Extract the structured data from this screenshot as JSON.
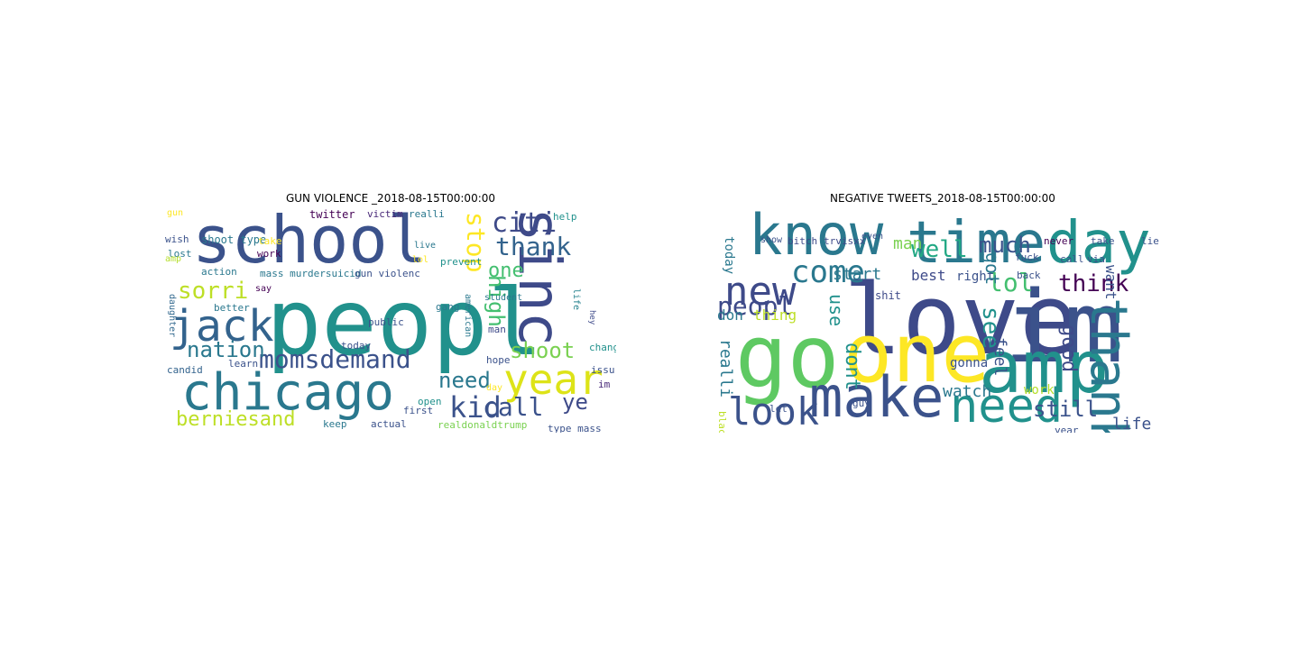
{
  "panels": [
    {
      "title": "GUN VIOLENCE _2018-08-15T00:00:00",
      "words": [
        {
          "text": "peopl",
          "color": "#21918c"
        },
        {
          "text": "school",
          "color": "#3b528b"
        },
        {
          "text": "chicago",
          "color": "#2a788e"
        },
        {
          "text": "sinc",
          "color": "#3e4a89"
        },
        {
          "text": "year",
          "color": "#dde318"
        },
        {
          "text": "jack",
          "color": "#33638d"
        },
        {
          "text": "momsdemand",
          "color": "#3b528b"
        },
        {
          "text": "berniesand",
          "color": "#bddf26"
        },
        {
          "text": "nation",
          "color": "#2a788e"
        },
        {
          "text": "sorri",
          "color": "#bddf26"
        },
        {
          "text": "citi",
          "color": "#3e4a89"
        },
        {
          "text": "thank",
          "color": "#33638d"
        },
        {
          "text": "stop",
          "color": "#fde725"
        },
        {
          "text": "one",
          "color": "#44bf70"
        },
        {
          "text": "high",
          "color": "#44bf70"
        },
        {
          "text": "shoot",
          "color": "#7ad151"
        },
        {
          "text": "kid",
          "color": "#3b528b"
        },
        {
          "text": "call",
          "color": "#3b528b"
        },
        {
          "text": "need",
          "color": "#2a788e"
        },
        {
          "text": "ye",
          "color": "#3e4a89"
        },
        {
          "text": "gun",
          "color": "#fde725"
        },
        {
          "text": "shoot type",
          "color": "#2a788e"
        },
        {
          "text": "twitter",
          "color": "#440154"
        },
        {
          "text": "victim",
          "color": "#482878"
        },
        {
          "text": "realli",
          "color": "#2a788e"
        },
        {
          "text": "help",
          "color": "#21918c"
        },
        {
          "text": "wish",
          "color": "#3b528b"
        },
        {
          "text": "lost",
          "color": "#2a788e"
        },
        {
          "text": "take",
          "color": "#fde725"
        },
        {
          "text": "work",
          "color": "#440154"
        },
        {
          "text": "live",
          "color": "#2a788e"
        },
        {
          "text": "lol",
          "color": "#fde725"
        },
        {
          "text": "prevent",
          "color": "#21918c"
        },
        {
          "text": "student",
          "color": "#2a788e"
        },
        {
          "text": "action",
          "color": "#2a788e"
        },
        {
          "text": "mass murdersuicid",
          "color": "#2a788e"
        },
        {
          "text": "gun violenc",
          "color": "#3b528b"
        },
        {
          "text": "amp",
          "color": "#b5de2b"
        },
        {
          "text": "say",
          "color": "#440154"
        },
        {
          "text": "daughter",
          "color": "#31688e"
        },
        {
          "text": "better",
          "color": "#2a788e"
        },
        {
          "text": "gang",
          "color": "#2a788e"
        },
        {
          "text": "american",
          "color": "#2a788e"
        },
        {
          "text": "man",
          "color": "#3e4a89"
        },
        {
          "text": "public",
          "color": "#3b528b"
        },
        {
          "text": "life",
          "color": "#26828e"
        },
        {
          "text": "hey",
          "color": "#3e4a89"
        },
        {
          "text": "chang",
          "color": "#21918c"
        },
        {
          "text": "today",
          "color": "#3b528b"
        },
        {
          "text": "learn",
          "color": "#3b528b"
        },
        {
          "text": "hope",
          "color": "#3b528b"
        },
        {
          "text": "issu",
          "color": "#3b528b"
        },
        {
          "text": "candid",
          "color": "#33638d"
        },
        {
          "text": "im",
          "color": "#482878"
        },
        {
          "text": "day",
          "color": "#fde725"
        },
        {
          "text": "open",
          "color": "#21918c"
        },
        {
          "text": "first",
          "color": "#3b528b"
        },
        {
          "text": "keep",
          "color": "#2a788e"
        },
        {
          "text": "actual",
          "color": "#3b528b"
        },
        {
          "text": "realdonaldtrump",
          "color": "#7ad151"
        },
        {
          "text": "type mass",
          "color": "#3b528b"
        }
      ]
    },
    {
      "title": "NEGATIVE TWEETS_2018-08-15T00:00:00",
      "words": [
        {
          "text": "love",
          "color": "#3e4a89"
        },
        {
          "text": "go",
          "color": "#5ec962"
        },
        {
          "text": "one",
          "color": "#fde725"
        },
        {
          "text": "im",
          "color": "#3b528b"
        },
        {
          "text": "amp",
          "color": "#21918c"
        },
        {
          "text": "time",
          "color": "#2a788e"
        },
        {
          "text": "day",
          "color": "#21918c"
        },
        {
          "text": "know",
          "color": "#2a788e"
        },
        {
          "text": "make",
          "color": "#3b528b"
        },
        {
          "text": "new",
          "color": "#3e4a89"
        },
        {
          "text": "look",
          "color": "#3b528b"
        },
        {
          "text": "need",
          "color": "#21918c"
        },
        {
          "text": "thank",
          "color": "#2a788e"
        },
        {
          "text": "come",
          "color": "#2a788e"
        },
        {
          "text": "peopl",
          "color": "#3e4a89"
        },
        {
          "text": "think",
          "color": "#440154"
        },
        {
          "text": "well",
          "color": "#22a884"
        },
        {
          "text": "much",
          "color": "#3b528b"
        },
        {
          "text": "lol",
          "color": "#44bf70"
        },
        {
          "text": "man",
          "color": "#7ad151"
        },
        {
          "text": "start",
          "color": "#2a788e"
        },
        {
          "text": "best",
          "color": "#3e4a89"
        },
        {
          "text": "right",
          "color": "#3b528b"
        },
        {
          "text": "see",
          "color": "#21918c"
        },
        {
          "text": "got",
          "color": "#2a788e"
        },
        {
          "text": "good",
          "color": "#3e4a89"
        },
        {
          "text": "want",
          "color": "#3b528b"
        },
        {
          "text": "watch",
          "color": "#2a788e"
        },
        {
          "text": "feel",
          "color": "#3b528b"
        },
        {
          "text": "still",
          "color": "#3b528b"
        },
        {
          "text": "life",
          "color": "#3b528b"
        },
        {
          "text": "dont",
          "color": "#21918c"
        },
        {
          "text": "use",
          "color": "#21918c"
        },
        {
          "text": "thing",
          "color": "#bddf26"
        },
        {
          "text": "don",
          "color": "#2a788e"
        },
        {
          "text": "realli",
          "color": "#2a788e"
        },
        {
          "text": "today",
          "color": "#2a788e"
        },
        {
          "text": "shit",
          "color": "#3e4a89"
        },
        {
          "text": "bitch",
          "color": "#3e4a89"
        },
        {
          "text": "trvisxx",
          "color": "#3e4a89"
        },
        {
          "text": "show",
          "color": "#3b528b"
        },
        {
          "text": "even",
          "color": "#3b528b"
        },
        {
          "text": "never",
          "color": "#440154"
        },
        {
          "text": "take",
          "color": "#3b528b"
        },
        {
          "text": "lie",
          "color": "#3b528b"
        },
        {
          "text": "fuck",
          "color": "#3b528b"
        },
        {
          "text": "back",
          "color": "#3b528b"
        },
        {
          "text": "call",
          "color": "#3b528b"
        },
        {
          "text": "via",
          "color": "#3b528b"
        },
        {
          "text": "gonna",
          "color": "#3b528b"
        },
        {
          "text": "work",
          "color": "#b5de2b"
        },
        {
          "text": "year",
          "color": "#3b528b"
        },
        {
          "text": "let",
          "color": "#3b528b"
        },
        {
          "text": "black",
          "color": "#bddf26"
        },
        {
          "text": "guy",
          "color": "#3b528b"
        }
      ]
    }
  ]
}
